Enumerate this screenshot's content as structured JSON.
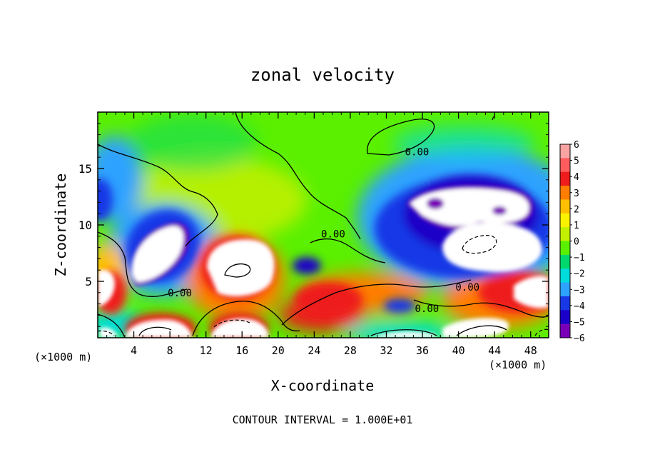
{
  "chart_data": {
    "type": "heatmap",
    "title": "zonal velocity",
    "xlabel": "X-coordinate",
    "ylabel": "Z-coordinate",
    "x_unit": "(×1000 m)",
    "footer": "CONTOUR INTERVAL = 1.000E+01",
    "xlim": [
      0,
      50
    ],
    "ylim": [
      0,
      20
    ],
    "x_ticks": [
      "4",
      "8",
      "12",
      "16",
      "20",
      "24",
      "28",
      "32",
      "36",
      "40",
      "44",
      "48"
    ],
    "y_ticks": [
      "5",
      "10",
      "15"
    ],
    "colorbar": {
      "range": [
        -6,
        6
      ],
      "ticks": [
        "6",
        "5",
        "4",
        "3",
        "2",
        "1",
        "0",
        "−1",
        "−2",
        "−3",
        "−4",
        "−5",
        "−6"
      ],
      "colors": [
        "#f9a3a3",
        "#ff5d5d",
        "#ee1c1c",
        "#ff7d00",
        "#ffbf00",
        "#fbf200",
        "#c3f000",
        "#5af000",
        "#00d86e",
        "#00dcdc",
        "#2ea2ff",
        "#1838e6",
        "#1a00c8",
        "#7a00b8"
      ]
    },
    "contour_labels": [
      {
        "text": "0.00",
        "x": 35.4,
        "y": 16.5
      },
      {
        "text": "0.00",
        "x": 26.1,
        "y": 9.2
      },
      {
        "text": "0.00",
        "x": 9.1,
        "y": 4.0
      },
      {
        "text": "0.00",
        "x": 41.0,
        "y": 4.5
      },
      {
        "text": "0.00",
        "x": 36.5,
        "y": 2.6
      }
    ],
    "features": [
      {
        "kind": "saturated_neg",
        "x": 7.1,
        "y": 8.0
      },
      {
        "kind": "saturated_pos",
        "x": 15.5,
        "y": 6.2
      },
      {
        "kind": "saturated_neg",
        "x": 48.5,
        "y": 11.8
      },
      {
        "kind": "saturated_neg",
        "x": 43.8,
        "y": 8.6
      },
      {
        "kind": "saturated_pos",
        "x": 46.5,
        "y": 2.8
      },
      {
        "kind": "saturated_pos",
        "x": 1.2,
        "y": 4.2
      },
      {
        "kind": "saturated_pos",
        "x": 5.8,
        "y": 0.4
      }
    ]
  }
}
